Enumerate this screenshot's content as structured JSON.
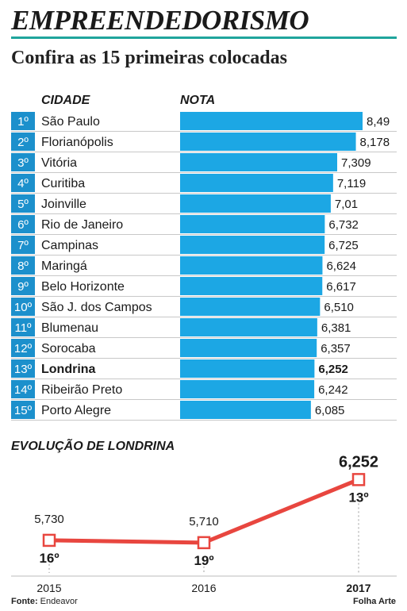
{
  "header": {
    "title": "EMPREENDEDORISMO",
    "subtitle": "Confira as 15 primeiras colocadas",
    "col_city": "CIDADE",
    "col_score": "NOTA"
  },
  "evolution_title": "EVOLUÇÃO DE LONDRINA",
  "footer": {
    "source_label": "Fonte:",
    "source_value": "Endeavor",
    "credit": "Folha Arte"
  },
  "colors": {
    "bar": "#1ca7e4",
    "rank_box": "#1c90cc",
    "line": "#e8463f",
    "teal": "#1fa59c"
  },
  "chart_data": [
    {
      "type": "bar",
      "orientation": "horizontal",
      "highlight": "Londrina",
      "xlim": [
        0,
        8.49
      ],
      "ranks": [
        "1º",
        "2º",
        "3º",
        "4º",
        "5º",
        "6º",
        "7º",
        "8º",
        "9º",
        "10º",
        "11º",
        "12º",
        "13º",
        "14º",
        "15º"
      ],
      "categories": [
        "São Paulo",
        "Florianópolis",
        "Vitória",
        "Curitiba",
        "Joinville",
        "Rio de Janeiro",
        "Campinas",
        "Maringá",
        "Belo Horizonte",
        "São J. dos Campos",
        "Blumenau",
        "Sorocaba",
        "Londrina",
        "Ribeirão Preto",
        "Porto Alegre"
      ],
      "values": [
        8.49,
        8.178,
        7.309,
        7.119,
        7.01,
        6.732,
        6.725,
        6.624,
        6.617,
        6.51,
        6.381,
        6.357,
        6.252,
        6.242,
        6.085
      ],
      "value_labels": [
        "8,49",
        "8,178",
        "7,309",
        "7,119",
        "7,01",
        "6,732",
        "6,725",
        "6,624",
        "6,617",
        "6,510",
        "6,381",
        "6,357",
        "6,252",
        "6,242",
        "6,085"
      ]
    },
    {
      "type": "line",
      "x": [
        "2015",
        "2016",
        "2017"
      ],
      "values": [
        5.73,
        5.71,
        6.252
      ],
      "value_labels": [
        "5,730",
        "5,710",
        "6,252"
      ],
      "rank_labels": [
        "16º",
        "19º",
        "13º"
      ],
      "highlight_x": "2017"
    }
  ]
}
